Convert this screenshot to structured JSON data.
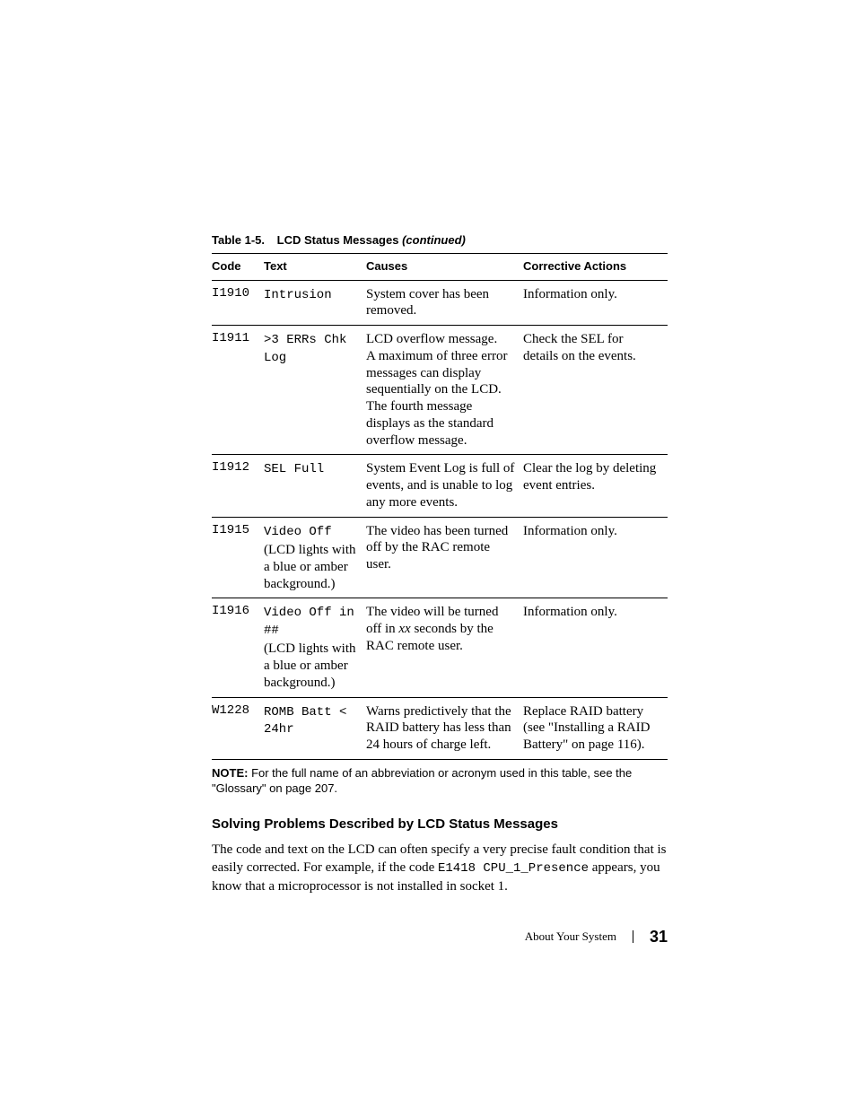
{
  "caption": {
    "number": "Table 1-5.",
    "title": "LCD Status Messages",
    "suffix": "(continued)"
  },
  "headers": {
    "code": "Code",
    "text": "Text",
    "causes": "Causes",
    "actions": "Corrective Actions"
  },
  "rows": [
    {
      "code": "I1910",
      "text_mono": "Intrusion",
      "text_paren": "",
      "causes": "System cover has been removed.",
      "actions": "Information only."
    },
    {
      "code": "I1911",
      "text_mono": ">3 ERRs Chk Log",
      "text_paren": "",
      "causes": "LCD overflow message.\nA maximum of three error messages can display sequentially on the LCD. The fourth message displays as the standard overflow message.",
      "actions": "Check the SEL for details on the events."
    },
    {
      "code": "I1912",
      "text_mono": "SEL Full",
      "text_paren": "",
      "causes": "System Event Log is full of events, and is unable to log any more events.",
      "actions": "Clear the log by deleting event entries."
    },
    {
      "code": "I1915",
      "text_mono": "Video Off",
      "text_paren": "(LCD lights with a blue or amber background.)",
      "causes": "The video has been turned off by the RAC remote user.",
      "actions": "Information only."
    },
    {
      "code": "I1916",
      "text_mono": "Video Off in ##",
      "text_paren": "(LCD lights with a blue or amber background.)",
      "causes_pre": "The video will be turned off in ",
      "causes_italic": "xx",
      "causes_post": " seconds by the RAC remote user.",
      "actions": "Information only."
    },
    {
      "code": "W1228",
      "text_mono": "ROMB Batt < 24hr",
      "text_paren": "",
      "causes": "Warns predictively that the RAID battery has less than 24 hours of charge left.",
      "actions": "Replace RAID battery (see \"Installing a RAID Battery\" on page 116)."
    }
  ],
  "note": {
    "label": "NOTE:",
    "text": " For the full name of an abbreviation or acronym used in this table, see the \"Glossary\" on page 207."
  },
  "subhead": "Solving Problems Described by LCD Status Messages",
  "body": {
    "pre": "The code and text on the LCD can often specify a very precise fault condition that is easily corrected. For example, if the code ",
    "mono": "E1418  CPU_1_Presence",
    "post": " appears, you know that a microprocessor is not installed in socket 1."
  },
  "footer": {
    "section": "About Your System",
    "page": "31"
  }
}
